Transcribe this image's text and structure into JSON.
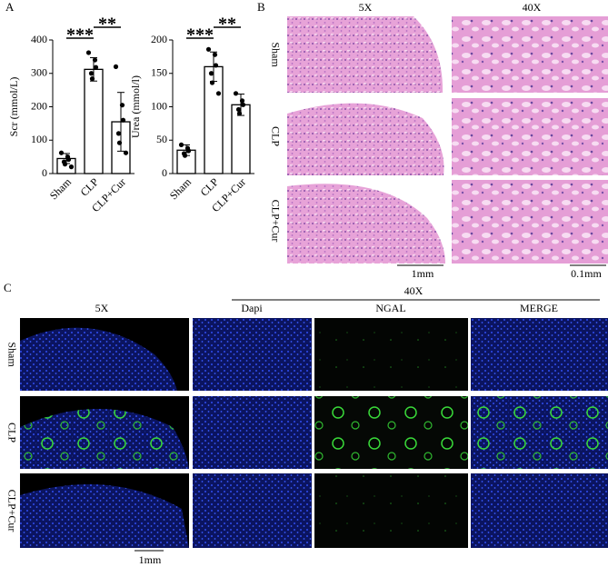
{
  "panel_labels": [
    "A",
    "B",
    "C"
  ],
  "chart_data": [
    {
      "type": "bar",
      "ylabel": "Scr (mmol/L)",
      "categories": [
        "Sham",
        "CLP",
        "CLP+Cur"
      ],
      "values": [
        45,
        312,
        155
      ],
      "errors": [
        15,
        35,
        88
      ],
      "points": [
        [
          62,
          50,
          42,
          35,
          28,
          20
        ],
        [
          362,
          340,
          318,
          300,
          284
        ],
        [
          320,
          205,
          160,
          120,
          92,
          62
        ]
      ],
      "ylim": [
        0,
        400
      ],
      "yticks": [
        0,
        100,
        200,
        300,
        400
      ],
      "significance": [
        "***",
        "**"
      ]
    },
    {
      "type": "bar",
      "ylabel": "Urea (mmol/l)",
      "categories": [
        "Sham",
        "CLP",
        "CLP+Cur"
      ],
      "values": [
        35,
        160,
        103
      ],
      "errors": [
        8,
        22,
        16
      ],
      "points": [
        [
          43,
          38,
          34,
          30,
          27
        ],
        [
          186,
          178,
          162,
          150,
          136,
          120
        ],
        [
          120,
          109,
          103,
          96,
          90
        ]
      ],
      "ylim": [
        0,
        200
      ],
      "yticks": [
        0,
        50,
        100,
        150,
        200
      ],
      "significance": [
        "***",
        "**"
      ]
    }
  ],
  "histology": {
    "columns": [
      "5X",
      "40X"
    ],
    "rows": [
      "Sham",
      "CLP",
      "CLP+Cur"
    ],
    "scale_bars": [
      "1mm",
      "0.1mm"
    ]
  },
  "fluorescence": {
    "group_label": "40X",
    "columns": [
      "5X",
      "Dapi",
      "NGAL",
      "MERGE"
    ],
    "rows": [
      "Sham",
      "CLP",
      "CLP+Cur"
    ],
    "scale_bar": "1mm"
  }
}
